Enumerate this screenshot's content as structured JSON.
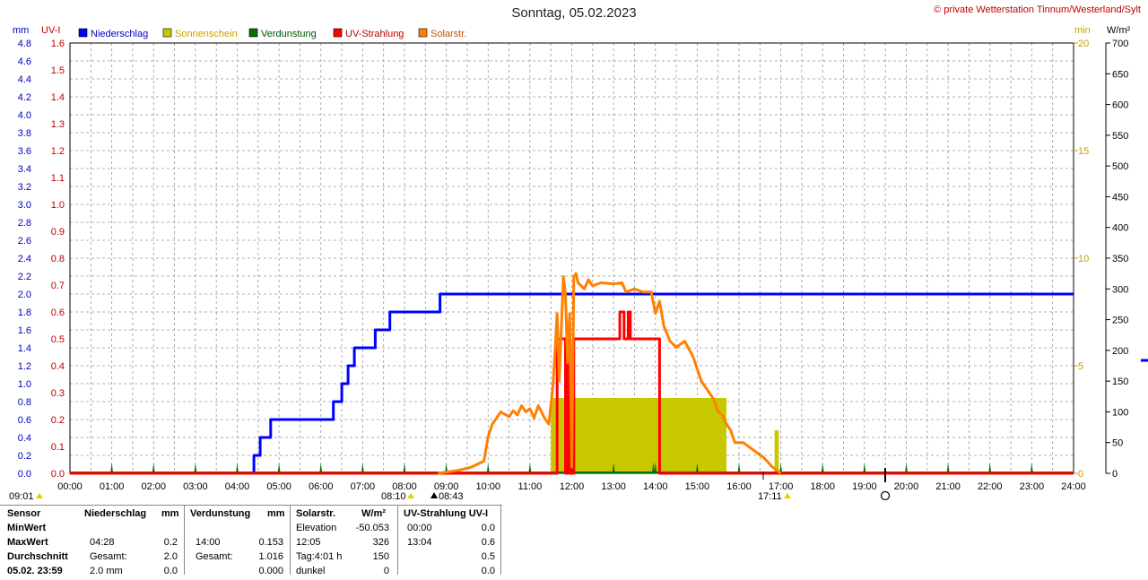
{
  "header": {
    "title": "Sonntag, 05.02.2023",
    "copyright": "© private Wetterstation Tinnum/Westerland/Sylt"
  },
  "colors": {
    "niederschlag": "#0000ff",
    "sonnenschein": "#c8c800",
    "verdunstung": "#007000",
    "uv": "#ff0000",
    "solar": "#ff8000",
    "grid": "#999999"
  },
  "chart_data": {
    "type": "line",
    "x_ticks": [
      "00:00",
      "01:00",
      "02:00",
      "03:00",
      "04:00",
      "05:00",
      "06:00",
      "07:00",
      "08:00",
      "09:00",
      "10:00",
      "11:00",
      "12:00",
      "13:00",
      "14:00",
      "15:00",
      "16:00",
      "17:00",
      "18:00",
      "19:00",
      "20:00",
      "21:00",
      "22:00",
      "23:00",
      "24:00"
    ],
    "axes": {
      "mm": {
        "label": "mm",
        "range": [
          0,
          4.8
        ],
        "ticks": [
          "0.0",
          "0.2",
          "0.4",
          "0.6",
          "0.8",
          "1.0",
          "1.2",
          "1.4",
          "1.6",
          "1.8",
          "2.0",
          "2.2",
          "2.4",
          "2.6",
          "2.8",
          "3.0",
          "3.2",
          "3.4",
          "3.6",
          "3.8",
          "4.0",
          "4.2",
          "4.4",
          "4.6",
          "4.8"
        ]
      },
      "uv": {
        "label": "UV-I",
        "range": [
          0,
          1.6
        ],
        "ticks": [
          "0.0",
          "0.1",
          "0.2",
          "0.3",
          "0.4",
          "0.5",
          "0.6",
          "0.7",
          "0.8",
          "0.9",
          "1.0",
          "1.1",
          "1.2",
          "1.3",
          "1.4",
          "1.5",
          "1.6"
        ]
      },
      "min": {
        "label": "min",
        "range": [
          0,
          20
        ],
        "ticks": [
          "0",
          "5",
          "10",
          "15",
          "20"
        ]
      },
      "wm2": {
        "label": "W/m²",
        "range": [
          0,
          700
        ],
        "ticks": [
          "0",
          "50",
          "100",
          "150",
          "200",
          "250",
          "300",
          "350",
          "400",
          "450",
          "500",
          "550",
          "600",
          "650",
          "700"
        ]
      }
    },
    "legend": [
      "Niederschlag",
      "Sonnenschein",
      "Verdunstung",
      "UV-Strahlung",
      "Solarstr."
    ],
    "series": [
      {
        "name": "Niederschlag",
        "axis": "mm",
        "points": [
          [
            0,
            0
          ],
          [
            4.4,
            0
          ],
          [
            4.4,
            0.2
          ],
          [
            4.55,
            0.2
          ],
          [
            4.55,
            0.4
          ],
          [
            4.8,
            0.4
          ],
          [
            4.8,
            0.6
          ],
          [
            6.3,
            0.6
          ],
          [
            6.3,
            0.8
          ],
          [
            6.5,
            0.8
          ],
          [
            6.5,
            1.0
          ],
          [
            6.65,
            1.0
          ],
          [
            6.65,
            1.2
          ],
          [
            6.8,
            1.2
          ],
          [
            6.8,
            1.4
          ],
          [
            7.3,
            1.4
          ],
          [
            7.3,
            1.6
          ],
          [
            7.65,
            1.6
          ],
          [
            7.65,
            1.8
          ],
          [
            8.85,
            1.8
          ],
          [
            8.85,
            2.0
          ],
          [
            24,
            2.0
          ]
        ]
      },
      {
        "name": "UV-Strahlung",
        "axis": "uv",
        "points": [
          [
            0,
            0
          ],
          [
            11.65,
            0
          ],
          [
            11.65,
            0.5
          ],
          [
            11.85,
            0.5
          ],
          [
            11.85,
            0
          ],
          [
            11.9,
            0
          ],
          [
            11.9,
            0.5
          ],
          [
            11.95,
            0.5
          ],
          [
            11.95,
            0
          ],
          [
            12.05,
            0
          ],
          [
            12.05,
            0.5
          ],
          [
            12.15,
            0.5
          ],
          [
            12.15,
            0.5
          ],
          [
            13.15,
            0.5
          ],
          [
            13.15,
            0.6
          ],
          [
            13.25,
            0.6
          ],
          [
            13.25,
            0.5
          ],
          [
            13.35,
            0.5
          ],
          [
            13.35,
            0.6
          ],
          [
            13.4,
            0.6
          ],
          [
            13.4,
            0.5
          ],
          [
            14.1,
            0.5
          ],
          [
            14.1,
            0
          ],
          [
            24,
            0
          ]
        ]
      },
      {
        "name": "Solarstr.",
        "axis": "wm2",
        "points": [
          [
            8.8,
            0
          ],
          [
            9.3,
            5
          ],
          [
            9.6,
            10
          ],
          [
            9.9,
            20
          ],
          [
            10.0,
            60
          ],
          [
            10.1,
            80
          ],
          [
            10.2,
            90
          ],
          [
            10.3,
            100
          ],
          [
            10.5,
            92
          ],
          [
            10.6,
            102
          ],
          [
            10.7,
            95
          ],
          [
            10.8,
            110
          ],
          [
            10.9,
            100
          ],
          [
            11.0,
            105
          ],
          [
            11.1,
            90
          ],
          [
            11.2,
            110
          ],
          [
            11.35,
            90
          ],
          [
            11.45,
            80
          ],
          [
            11.55,
            140
          ],
          [
            11.6,
            200
          ],
          [
            11.65,
            260
          ],
          [
            11.7,
            150
          ],
          [
            11.8,
            320
          ],
          [
            11.85,
            290
          ],
          [
            11.9,
            180
          ],
          [
            11.95,
            260
          ],
          [
            12.0,
            10
          ],
          [
            12.05,
            320
          ],
          [
            12.1,
            325
          ],
          [
            12.15,
            310
          ],
          [
            12.3,
            300
          ],
          [
            12.4,
            315
          ],
          [
            12.5,
            305
          ],
          [
            12.7,
            310
          ],
          [
            13.0,
            308
          ],
          [
            13.2,
            310
          ],
          [
            13.3,
            295
          ],
          [
            13.5,
            300
          ],
          [
            13.7,
            295
          ],
          [
            13.9,
            295
          ],
          [
            14.0,
            260
          ],
          [
            14.1,
            280
          ],
          [
            14.2,
            240
          ],
          [
            14.35,
            215
          ],
          [
            14.5,
            205
          ],
          [
            14.7,
            215
          ],
          [
            14.9,
            190
          ],
          [
            15.1,
            150
          ],
          [
            15.25,
            135
          ],
          [
            15.4,
            120
          ],
          [
            15.5,
            100
          ],
          [
            15.6,
            95
          ],
          [
            15.7,
            80
          ],
          [
            15.8,
            70
          ],
          [
            15.9,
            50
          ],
          [
            16.1,
            50
          ],
          [
            16.3,
            40
          ],
          [
            16.6,
            25
          ],
          [
            16.8,
            10
          ],
          [
            17.0,
            0
          ]
        ]
      }
    ],
    "sunshine_bars": [
      [
        11.5,
        11.85,
        3.5
      ],
      [
        11.85,
        12.05,
        2.0
      ],
      [
        12.05,
        15.7,
        3.5
      ],
      [
        16.85,
        16.95,
        2.0
      ]
    ],
    "evaporation_ticks": [
      1.0,
      2.0,
      3.0,
      4.0,
      5.0,
      6.0,
      7.0,
      8.0,
      9.0,
      10.0,
      11.0,
      12.0,
      13.0,
      13.95,
      14.0,
      15.0,
      16.0,
      17.0,
      18.0,
      19.0,
      20.0,
      21.0,
      22.0,
      23.0
    ],
    "below_axis": {
      "sunrise_prev": "09:01",
      "sunrise": "08:10",
      "noon": "08:43",
      "sunset": "17:11"
    }
  },
  "stats": {
    "headers": {
      "sensor": "Sensor",
      "niederschlag": "Niederschlag",
      "mm1": "mm",
      "verdunstung": "Verdunstung",
      "mm2": "mm",
      "solar": "Solarstr.",
      "wm2": "W/m²",
      "uv": "UV-Strahlung UV-I"
    },
    "rows": [
      {
        "label": "MinWert",
        "n_time": "",
        "n_val": "",
        "v_time": "",
        "v_val": "",
        "s_lbl": "Elevation",
        "s_val": "-50.053",
        "u_time": "00:00",
        "u_val": "0.0"
      },
      {
        "label": "MaxWert",
        "n_time": "04:28",
        "n_val": "0.2",
        "v_time": "14:00",
        "v_val": "0.153",
        "s_lbl": "12:05",
        "s_val": "326",
        "u_time": "13:04",
        "u_val": "0.6"
      },
      {
        "label": "Durchschnitt",
        "n_time": "Gesamt:",
        "n_val": "2.0",
        "v_time": "Gesamt:",
        "v_val": "1.016",
        "s_lbl": "Tag:4:01 h",
        "s_val": "150",
        "u_time": "",
        "u_val": "0.5"
      },
      {
        "label": "05.02. 23:59",
        "n_time": "2.0 mm",
        "n_val": "0.0",
        "v_time": "",
        "v_val": "0.000",
        "s_lbl": "dunkel",
        "s_val": "0",
        "u_time": "",
        "u_val": "0.0"
      }
    ]
  }
}
